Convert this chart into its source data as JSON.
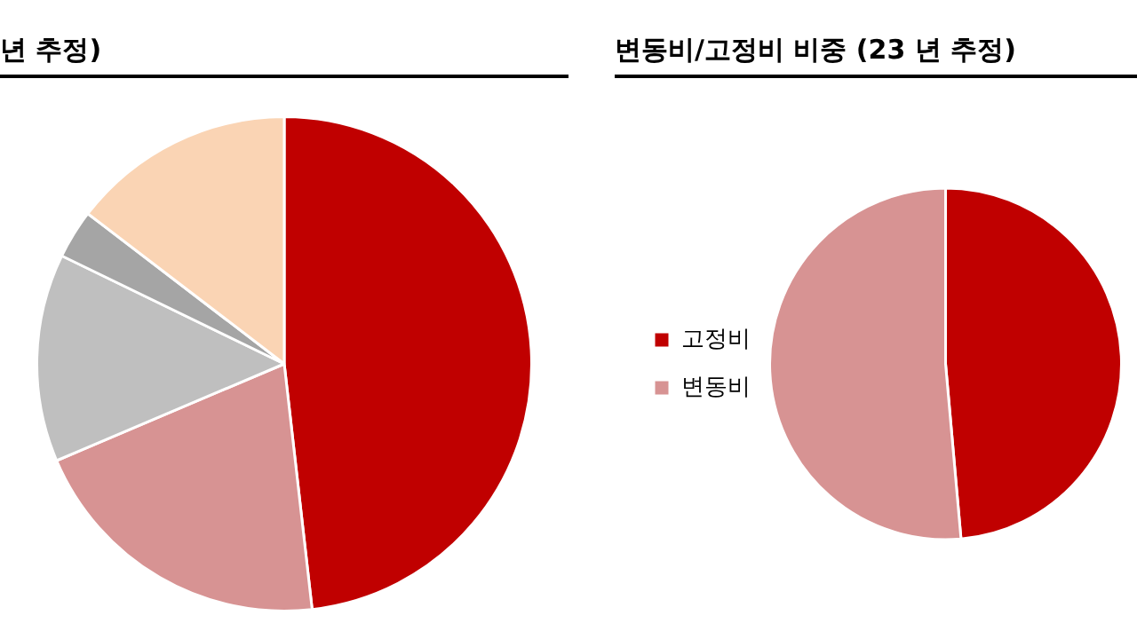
{
  "chart_data": [
    {
      "type": "pie",
      "title": "년 추정)",
      "categories": [
        null,
        null,
        null,
        null,
        null
      ],
      "values": [
        48.2,
        20.4,
        13.6,
        3.2,
        14.6
      ],
      "colors": [
        "#c00000",
        "#d79393",
        "#bfbfbf",
        "#a5a5a5",
        "#fad4b4"
      ],
      "legend": false
    },
    {
      "type": "pie",
      "title": "변동비/고정비 비중 (23 년 추정)",
      "categories": [
        "고정비",
        "변동비"
      ],
      "values": [
        48.6,
        51.4
      ],
      "colors": [
        "#c00000",
        "#d79393"
      ],
      "legend": "left"
    }
  ]
}
